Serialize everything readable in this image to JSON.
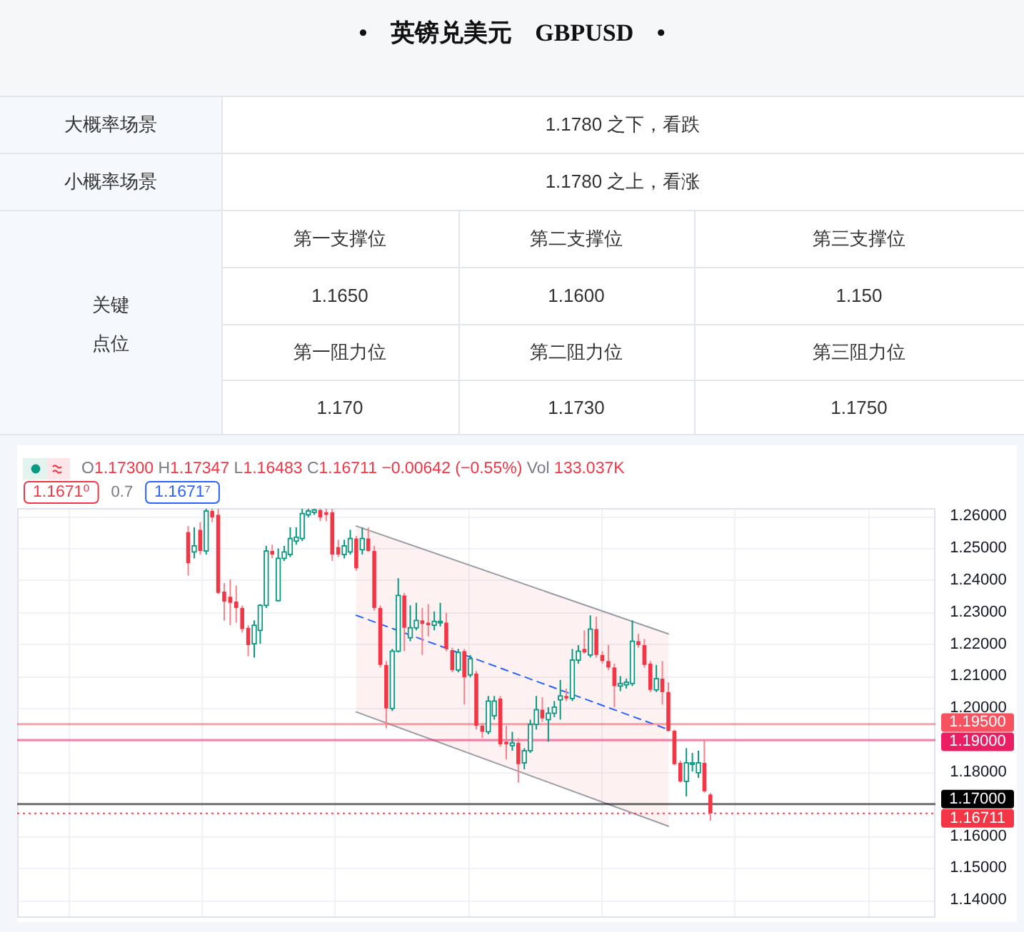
{
  "chart_data": [
    {
      "type": "other",
      "title": "• 英镑兑美元 GBPUSD •",
      "annotations": [
        "大概率场景",
        "1.1780 之下，看跌",
        "小概率场景",
        "1.1780 之上，看涨",
        "关键点位",
        "第一支撑位",
        "第二支撑位",
        "第三支撑位",
        "1.1650",
        "1.1600",
        "1.150",
        "第一阻力位",
        "第二阻力位",
        "第三阻力位",
        "1.170",
        "1.1730",
        "1.1750"
      ]
    },
    {
      "type": "candlestick",
      "categories": [
        null,
        null,
        null,
        null,
        null,
        null,
        null,
        null,
        null,
        null,
        null,
        null,
        null,
        null,
        null,
        null,
        null,
        null,
        null,
        null,
        null,
        null,
        null,
        null,
        null,
        null,
        null,
        null,
        null,
        null,
        null,
        null,
        null,
        null,
        null,
        null,
        null,
        null,
        null,
        null,
        null,
        null,
        null,
        null,
        null,
        null,
        null,
        null,
        null,
        null,
        null,
        null,
        null,
        null,
        null,
        null,
        null,
        null,
        null,
        null,
        null,
        null,
        null,
        null,
        null,
        null,
        null,
        null,
        null,
        null,
        null,
        null,
        null,
        null,
        null,
        null,
        null,
        null,
        null,
        null,
        null,
        null,
        null,
        null,
        null,
        null,
        null,
        null,
        null,
        null,
        null,
        null,
        null,
        null,
        null,
        null,
        null,
        null,
        null,
        null,
        null,
        null,
        null,
        null,
        null,
        null,
        null,
        null,
        null,
        null,
        null,
        null,
        null,
        null,
        null,
        null,
        null,
        null,
        null,
        null,
        null,
        null,
        null,
        null,
        null,
        null,
        null,
        null,
        null,
        null,
        null,
        null,
        null,
        null,
        null,
        null,
        null,
        null,
        null,
        null,
        null,
        null,
        null,
        null,
        null,
        null,
        null,
        null,
        null,
        null,
        null,
        null,
        null
      ],
      "ohlc": [
        null,
        null,
        null,
        null,
        null,
        null,
        null,
        null,
        null,
        null,
        null,
        null,
        null,
        null,
        null,
        null,
        null,
        null,
        null,
        null,
        null,
        null,
        null,
        null,
        null,
        null,
        null,
        null,
        [
          1.255,
          1.2569,
          1.2414,
          1.2453
        ],
        [
          1.2488,
          1.2565,
          1.2468,
          1.2507
        ],
        [
          1.2557,
          1.2581,
          1.248,
          1.2491
        ],
        [
          1.2491,
          1.2623,
          1.248,
          1.2616
        ],
        [
          1.2616,
          1.2623,
          1.2581,
          1.2596
        ],
        [
          1.2604,
          1.2623,
          1.2356,
          1.236
        ],
        [
          1.2364,
          1.2391,
          1.2274,
          1.2333
        ],
        [
          1.2348,
          1.2402,
          1.2259,
          1.2329
        ],
        [
          1.2333,
          1.2383,
          1.2267,
          1.2313
        ],
        [
          1.2313,
          1.2321,
          1.2236,
          1.2247
        ],
        [
          1.2251,
          1.2259,
          1.2162,
          1.2197
        ],
        [
          1.2201,
          1.2274,
          1.2158,
          1.2259
        ],
        [
          1.2243,
          1.2325,
          1.2201,
          1.2321
        ],
        [
          1.2321,
          1.2507,
          1.2313,
          1.2491
        ],
        [
          1.2491,
          1.2511,
          1.2468,
          1.248
        ],
        [
          1.2336,
          1.2499,
          1.2333,
          1.2468
        ],
        [
          1.2468,
          1.2507,
          1.246,
          1.2488
        ],
        [
          1.248,
          1.2565,
          1.2472,
          1.253
        ],
        [
          1.2522,
          1.2565,
          1.2511,
          1.2534
        ],
        [
          1.253,
          1.2623,
          1.2522,
          1.2608
        ],
        [
          1.2604,
          1.2623,
          1.2596,
          1.2616
        ],
        [
          1.2612,
          1.2623,
          1.2604,
          1.2619
        ],
        [
          1.2619,
          1.2623,
          1.2584,
          1.2596
        ],
        [
          1.2612,
          1.2623,
          1.2584,
          1.2604
        ],
        [
          1.2612,
          1.2623,
          1.246,
          1.248
        ],
        [
          1.2503,
          1.2526,
          1.2472,
          1.248
        ],
        [
          1.248,
          1.2526,
          1.2468,
          1.2507
        ],
        [
          1.2488,
          1.2557,
          1.248,
          1.253
        ],
        [
          1.253,
          1.2538,
          1.2429,
          1.2437
        ],
        [
          1.2495,
          1.2565,
          1.248,
          1.253
        ],
        [
          1.253,
          1.2565,
          1.2488,
          1.2491
        ],
        [
          1.2491,
          1.2507,
          1.2305,
          1.2313
        ],
        [
          1.2313,
          1.2321,
          1.2127,
          1.2135
        ],
        [
          1.2135,
          1.2147,
          1.1937,
          1.1999
        ],
        [
          1.1999,
          1.2185,
          1.1991,
          1.2178
        ],
        [
          1.2178,
          1.2406,
          1.2174,
          1.2352
        ],
        [
          1.2352,
          1.236,
          1.2178,
          1.2251
        ],
        [
          1.222,
          1.2321,
          1.2209,
          1.2251
        ],
        [
          1.2251,
          1.2329,
          1.2243,
          1.2274
        ],
        [
          1.2274,
          1.2313,
          1.2166,
          1.2263
        ],
        [
          1.2267,
          1.2325,
          1.2224,
          1.2259
        ],
        [
          1.2259,
          1.2302,
          1.2243,
          1.2271
        ],
        [
          1.2267,
          1.2329,
          1.2255,
          1.2271
        ],
        [
          1.2267,
          1.2298,
          1.2178,
          1.2185
        ],
        [
          1.2181,
          1.2189,
          1.2112,
          1.2119
        ],
        [
          1.2119,
          1.2185,
          1.2112,
          1.2174
        ],
        [
          1.2178,
          1.2185,
          1.2011,
          1.2096
        ],
        [
          1.2104,
          1.2166,
          1.2096,
          1.2154
        ],
        [
          1.2108,
          1.2116,
          1.1933,
          1.1945
        ],
        [
          1.1945,
          1.1953,
          1.1906,
          1.1926
        ],
        [
          1.1926,
          1.2038,
          1.1918,
          1.2022
        ],
        [
          1.1976,
          1.2038,
          1.1964,
          1.2022
        ],
        [
          1.203,
          1.2038,
          1.1879,
          1.1887
        ],
        [
          1.1895,
          1.1945,
          1.184,
          1.1887
        ],
        [
          1.1883,
          1.1926,
          1.1867,
          1.1891
        ],
        [
          1.1891,
          1.1906,
          1.1767,
          1.1825
        ],
        [
          1.1829,
          1.1875,
          1.1809,
          1.1867
        ],
        [
          1.1867,
          1.1964,
          1.186,
          1.1949
        ],
        [
          1.1949,
          1.2038,
          1.1933,
          1.1995
        ],
        [
          1.1995,
          1.2034,
          1.1957,
          1.1968
        ],
        [
          1.1964,
          1.2003,
          1.1895,
          1.1984
        ],
        [
          1.1984,
          1.2022,
          1.1972,
          1.2003
        ],
        [
          1.2026,
          1.2088,
          1.1964,
          1.2038
        ],
        [
          1.2038,
          1.2061,
          1.2022,
          1.203
        ],
        [
          1.203,
          1.2185,
          1.2022,
          1.215
        ],
        [
          1.215,
          1.2197,
          1.2139,
          1.2178
        ],
        [
          1.2185,
          1.2243,
          1.217,
          1.2174
        ],
        [
          1.2166,
          1.229,
          1.2158,
          1.2247
        ],
        [
          1.2247,
          1.2286,
          1.2158,
          1.2166
        ],
        [
          1.2166,
          1.2178,
          1.2139,
          1.2147
        ],
        [
          1.2147,
          1.2197,
          1.2119,
          1.2127
        ],
        [
          1.2127,
          1.2139,
          1.2003,
          1.2069
        ],
        [
          1.2069,
          1.21,
          1.2053,
          1.2077
        ],
        [
          1.2073,
          1.2092,
          1.2061,
          1.2081
        ],
        [
          1.2077,
          1.2274,
          1.2069,
          1.2209
        ],
        [
          1.2209,
          1.2232,
          1.2189,
          1.2197
        ],
        [
          1.2197,
          1.2216,
          1.2127,
          1.2135
        ],
        [
          1.2139,
          1.2147,
          1.205,
          1.2057
        ],
        [
          1.2057,
          1.2135,
          1.205,
          1.2092
        ],
        [
          1.2092,
          1.2147,
          1.2011,
          1.205
        ],
        [
          1.205,
          1.2081,
          1.1926,
          1.1929
        ],
        [
          1.1929,
          1.1933,
          1.1821,
          1.1825
        ],
        [
          1.1829,
          1.1836,
          1.1767,
          1.1771
        ],
        [
          1.1771,
          1.1875,
          1.1724,
          1.1829
        ],
        [
          1.1825,
          1.186,
          1.1802,
          1.1829
        ],
        [
          1.1798,
          1.1867,
          1.1782,
          1.1829
        ],
        [
          1.1829,
          1.1902,
          1.1736,
          1.174
        ],
        [
          1.173,
          1.17347,
          1.16483,
          1.16711
        ],
        null,
        null,
        null,
        null,
        null,
        null,
        null,
        null,
        null,
        null,
        null,
        null,
        null,
        null,
        null,
        null,
        null,
        null,
        null,
        null,
        null,
        null,
        null,
        null,
        null,
        null,
        null,
        null,
        null,
        null,
        null,
        null,
        null,
        null,
        null,
        null,
        null
      ],
      "series": [
        {
          "type": "line",
          "color": "#2962ff",
          "line_style": "dashed",
          "values": [
            null,
            null,
            null,
            null,
            null,
            null,
            null,
            null,
            null,
            null,
            null,
            null,
            null,
            null,
            null,
            null,
            null,
            null,
            null,
            null,
            null,
            null,
            null,
            null,
            null,
            null,
            null,
            null,
            null,
            null,
            null,
            null,
            null,
            null,
            null,
            null,
            null,
            null,
            null,
            null,
            null,
            null,
            null,
            null,
            null,
            null,
            null,
            null,
            null,
            null,
            null,
            null,
            null,
            null,
            null,
            null,
            1.229,
            null,
            null,
            null,
            null,
            null,
            null,
            null,
            null,
            null,
            null,
            null,
            null,
            null,
            null,
            null,
            null,
            null,
            null,
            null,
            null,
            null,
            null,
            null,
            null,
            null,
            null,
            null,
            null,
            null,
            null,
            null,
            null,
            null,
            null,
            null,
            null,
            null,
            null,
            null,
            null,
            null,
            null,
            null,
            null,
            null,
            null,
            null,
            null,
            null,
            null,
            null,
            1.1933,
            null,
            null,
            null,
            null,
            null,
            null,
            null,
            null,
            null,
            null,
            null,
            null,
            null,
            null,
            null,
            null,
            null,
            null,
            null,
            null,
            null,
            null,
            null,
            null,
            null,
            null,
            null,
            null,
            null,
            null,
            null,
            null,
            null,
            null,
            null,
            null,
            null,
            null,
            null,
            null,
            null,
            null,
            null,
            null
          ],
          "lower": [
            null,
            null,
            null,
            null,
            null,
            null,
            null,
            null,
            null,
            null,
            null,
            null,
            null,
            null,
            null,
            null,
            null,
            null,
            null,
            null,
            null,
            null,
            null,
            null,
            null,
            null,
            null,
            null,
            null,
            null,
            null,
            null,
            null,
            null,
            null,
            null,
            null,
            null,
            null,
            null,
            null,
            null,
            null,
            null,
            null,
            null,
            null,
            null,
            null,
            null,
            null,
            null,
            null,
            null,
            null,
            null,
            1.1988,
            null,
            null,
            null,
            null,
            null,
            null,
            null,
            null,
            null,
            null,
            null,
            null,
            null,
            null,
            null,
            null,
            null,
            null,
            null,
            null,
            null,
            null,
            null,
            null,
            null,
            null,
            null,
            null,
            null,
            null,
            null,
            null,
            null,
            null,
            null,
            null,
            null,
            null,
            null,
            null,
            null,
            null,
            null,
            null,
            null,
            null,
            null,
            null,
            null,
            null,
            null,
            1.1631,
            null,
            null,
            null,
            null,
            null,
            null,
            null,
            null,
            null,
            null,
            null,
            null,
            null,
            null,
            null,
            null,
            null,
            null,
            null,
            null,
            null,
            null,
            null,
            null,
            null,
            null,
            null,
            null,
            null,
            null,
            null,
            null,
            null,
            null,
            null,
            null,
            null,
            null,
            null,
            null,
            null,
            null,
            null,
            null
          ],
          "upper": [
            null,
            null,
            null,
            null,
            null,
            null,
            null,
            null,
            null,
            null,
            null,
            null,
            null,
            null,
            null,
            null,
            null,
            null,
            null,
            null,
            null,
            null,
            null,
            null,
            null,
            null,
            null,
            null,
            null,
            null,
            null,
            null,
            null,
            null,
            null,
            null,
            null,
            null,
            null,
            null,
            null,
            null,
            null,
            null,
            null,
            null,
            null,
            null,
            null,
            null,
            null,
            null,
            null,
            null,
            null,
            null,
            1.2569,
            null,
            null,
            null,
            null,
            null,
            null,
            null,
            null,
            null,
            null,
            null,
            null,
            null,
            null,
            null,
            null,
            null,
            null,
            null,
            null,
            null,
            null,
            null,
            null,
            null,
            null,
            null,
            null,
            null,
            null,
            null,
            null,
            null,
            null,
            null,
            null,
            null,
            null,
            null,
            null,
            null,
            null,
            null,
            null,
            null,
            null,
            null,
            null,
            null,
            null,
            null,
            1.2232,
            null,
            null,
            null,
            null,
            null,
            null,
            null,
            null,
            null,
            null,
            null,
            null,
            null,
            null,
            null,
            null,
            null,
            null,
            null,
            null,
            null,
            null,
            null,
            null,
            null,
            null,
            null,
            null,
            null,
            null,
            null,
            null,
            null,
            null,
            null,
            null,
            null,
            null,
            null,
            null,
            null,
            null,
            null,
            null
          ]
        },
        {
          "type": "line",
          "color": "#9a9ca6",
          "values": [
            null,
            null,
            null,
            null,
            null,
            null,
            null,
            null,
            null,
            null,
            null,
            null,
            null,
            null,
            null,
            null,
            null,
            null,
            null,
            null,
            null,
            null,
            null,
            null,
            null,
            null,
            null,
            null,
            null,
            null,
            null,
            null,
            null,
            null,
            null,
            null,
            null,
            null,
            null,
            null,
            null,
            null,
            null,
            null,
            null,
            null,
            null,
            null,
            null,
            null,
            null,
            null,
            null,
            null,
            null,
            null,
            1.2569,
            null,
            null,
            null,
            null,
            null,
            null,
            null,
            null,
            null,
            null,
            null,
            null,
            null,
            null,
            null,
            null,
            null,
            null,
            null,
            null,
            null,
            null,
            null,
            null,
            null,
            null,
            null,
            null,
            null,
            null,
            null,
            null,
            null,
            null,
            null,
            null,
            null,
            null,
            null,
            null,
            null,
            null,
            null,
            null,
            null,
            null,
            null,
            null,
            null,
            null,
            null,
            1.2232,
            null,
            null,
            null,
            null,
            null,
            null,
            null,
            null,
            null,
            null,
            null,
            null,
            null,
            null,
            null,
            null,
            null,
            null,
            null,
            null,
            null,
            null,
            null,
            null,
            null,
            null,
            null,
            null,
            null,
            null,
            null,
            null,
            null,
            null,
            null,
            null,
            null,
            null,
            null,
            null,
            null,
            null,
            null,
            null
          ]
        },
        {
          "type": "line",
          "color": "#9a9ca6",
          "values": [
            null,
            null,
            null,
            null,
            null,
            null,
            null,
            null,
            null,
            null,
            null,
            null,
            null,
            null,
            null,
            null,
            null,
            null,
            null,
            null,
            null,
            null,
            null,
            null,
            null,
            null,
            null,
            null,
            null,
            null,
            null,
            null,
            null,
            null,
            null,
            null,
            null,
            null,
            null,
            null,
            null,
            null,
            null,
            null,
            null,
            null,
            null,
            null,
            null,
            null,
            null,
            null,
            null,
            null,
            null,
            null,
            1.1988,
            null,
            null,
            null,
            null,
            null,
            null,
            null,
            null,
            null,
            null,
            null,
            null,
            null,
            null,
            null,
            null,
            null,
            null,
            null,
            null,
            null,
            null,
            null,
            null,
            null,
            null,
            null,
            null,
            null,
            null,
            null,
            null,
            null,
            null,
            null,
            null,
            null,
            null,
            null,
            null,
            null,
            null,
            null,
            null,
            null,
            null,
            null,
            null,
            null,
            null,
            null,
            1.1631,
            null,
            null,
            null,
            null,
            null,
            null,
            null,
            null,
            null,
            null,
            null,
            null,
            null,
            null,
            null,
            null,
            null,
            null,
            null,
            null,
            null,
            null,
            null,
            null,
            null,
            null,
            null,
            null,
            null,
            null,
            null,
            null,
            null,
            null,
            null,
            null,
            null,
            null,
            null,
            null,
            null,
            null,
            null,
            null
          ]
        }
      ],
      "ylim": [
        1.1345,
        1.2625
      ],
      "yticks": [
        {
          "value": 1.14,
          "label": "1.14000"
        },
        {
          "value": 1.15,
          "label": "1.15000"
        },
        {
          "value": 1.16,
          "label": "1.16000"
        },
        {
          "value": 1.17,
          "label": null
        },
        {
          "value": 1.18,
          "label": "1.18000"
        },
        {
          "value": 1.19,
          "label": null
        },
        {
          "value": 1.2,
          "label": "1.20000"
        },
        {
          "value": 1.21,
          "label": "1.21000"
        },
        {
          "value": 1.22,
          "label": "1.22000"
        },
        {
          "value": 1.23,
          "label": "1.23000"
        },
        {
          "value": 1.24,
          "label": "1.24000"
        },
        {
          "value": 1.25,
          "label": "1.25000"
        },
        {
          "value": 1.26,
          "label": "1.26000"
        }
      ],
      "grid": true,
      "tick_labels": "y",
      "ref_lines": [
        {
          "axis": "y",
          "value": 1.195,
          "label": "1.19500",
          "color": "#f7525f"
        },
        {
          "axis": "y",
          "value": 1.19,
          "label": "1.19000",
          "color": "#e91e63"
        },
        {
          "axis": "y",
          "value": 1.17,
          "label": "1.17000",
          "color": "#000000"
        },
        {
          "axis": "y",
          "value": 1.16711,
          "label": "1.16711",
          "color": "#f23645",
          "line_style": "dotted"
        }
      ],
      "annotations": [
        "O1.17300 H1.17347 L1.16483 C1.16711 −0.00642 (−0.55%) Vol 133.037K",
        "1.1671⁰",
        "0.7",
        "1.1671⁷"
      ]
    }
  ]
}
